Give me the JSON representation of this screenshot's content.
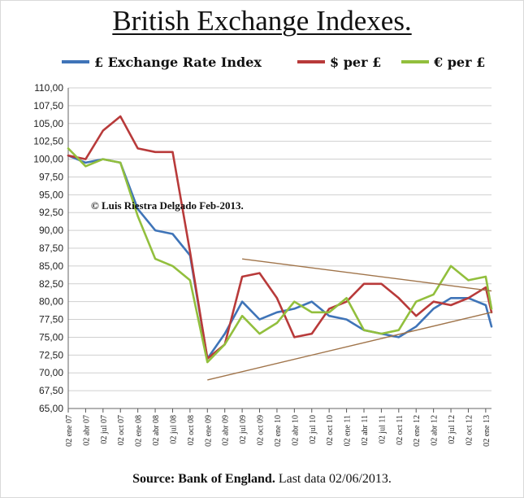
{
  "title": "British Exchange Indexes.",
  "source": {
    "bold": "Source: Bank of England.",
    "rest": " Last data 02/06/2013."
  },
  "colors": {
    "gbp": "#3f74b8",
    "usd": "#b83a3a",
    "eur": "#92bf3d",
    "trend": "#a0744a",
    "grid": "#cfcfcf"
  },
  "chart_data": {
    "type": "line",
    "title": "British Exchange Indexes.",
    "xlabel": "",
    "ylabel": "",
    "ylim": [
      65,
      110
    ],
    "yticks": [
      "65,00",
      "67,50",
      "70,00",
      "72,50",
      "75,00",
      "77,50",
      "80,00",
      "82,50",
      "85,00",
      "87,50",
      "90,00",
      "92,50",
      "95,00",
      "97,50",
      "100,00",
      "102,50",
      "105,00",
      "107,50",
      "110,00"
    ],
    "xticks": [
      "02 ene 07",
      "02 abr 07",
      "02 jul 07",
      "02 oct 07",
      "02 ene 08",
      "02 abr 08",
      "02 jul 08",
      "02 oct 08",
      "02 ene 09",
      "02 abr 09",
      "02 jul 09",
      "02 oct 09",
      "02 ene 10",
      "02 abr 10",
      "02 jul 10",
      "02 oct 10",
      "02 ene 11",
      "02 abr 11",
      "02 jul 11",
      "02 oct 11",
      "02 ene 12",
      "02 abr 12",
      "02 jul 12",
      "02 oct 12",
      "02 ene 13"
    ],
    "grid": true,
    "legend_position": "top",
    "annotation": "© Luis Riestra  Delgado Feb-2013.",
    "x": [
      "2007-01",
      "2007-04",
      "2007-07",
      "2007-10",
      "2008-01",
      "2008-04",
      "2008-07",
      "2008-10",
      "2009-01",
      "2009-04",
      "2009-07",
      "2009-10",
      "2010-01",
      "2010-04",
      "2010-07",
      "2010-10",
      "2011-01",
      "2011-04",
      "2011-07",
      "2011-10",
      "2012-01",
      "2012-04",
      "2012-07",
      "2012-10",
      "2013-01",
      "2013-02"
    ],
    "series": [
      {
        "name": "£ Exchange Rate Index",
        "color": "#3f74b8",
        "values": [
          100.5,
          99.5,
          100.0,
          99.5,
          93.0,
          90.0,
          89.5,
          86.5,
          72.0,
          75.5,
          80.0,
          77.5,
          78.5,
          79.0,
          80.0,
          78.0,
          77.5,
          76.0,
          75.5,
          75.0,
          76.5,
          79.0,
          80.5,
          80.5,
          79.5,
          76.5
        ]
      },
      {
        "name": "$ per £",
        "color": "#b83a3a",
        "values": [
          100.5,
          100.0,
          104.0,
          106.0,
          101.5,
          101.0,
          101.0,
          87.0,
          72.0,
          74.0,
          83.5,
          84.0,
          80.5,
          75.0,
          75.5,
          79.0,
          80.0,
          82.5,
          82.5,
          80.5,
          78.0,
          80.0,
          79.5,
          80.5,
          82.0,
          78.5
        ]
      },
      {
        "name": "€ per £",
        "color": "#92bf3d",
        "values": [
          101.5,
          99.0,
          100.0,
          99.5,
          92.0,
          86.0,
          85.0,
          83.0,
          71.5,
          74.0,
          78.0,
          75.5,
          77.0,
          80.0,
          78.5,
          78.5,
          80.5,
          76.0,
          75.5,
          76.0,
          80.0,
          81.0,
          85.0,
          83.0,
          83.5,
          79.0
        ]
      }
    ],
    "trendlines": [
      {
        "x": [
          "2009-07",
          "2013-02"
        ],
        "y": [
          86.0,
          81.5
        ]
      },
      {
        "x": [
          "2009-01",
          "2013-02"
        ],
        "y": [
          69.0,
          78.5
        ]
      }
    ]
  }
}
